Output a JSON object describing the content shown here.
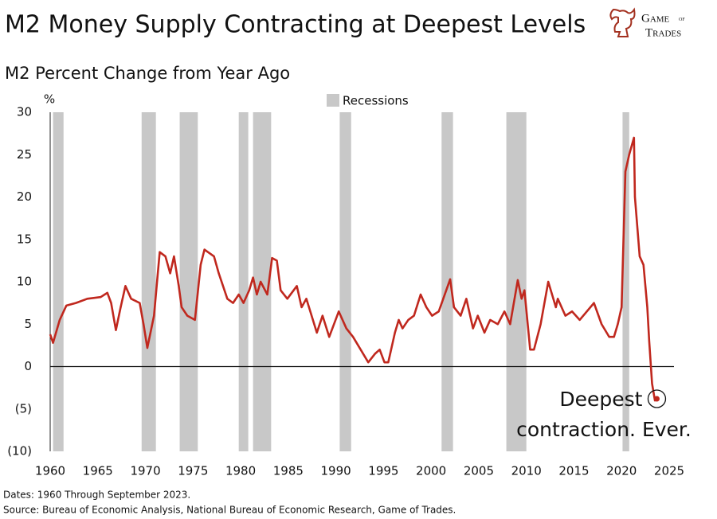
{
  "chart_data": {
    "type": "line",
    "title": "M2 Money Supply Contracting at Deepest Levels",
    "subtitle": "M2 Percent Change from Year Ago",
    "y_unit": "%",
    "x": [
      1960.0,
      1960.3,
      1961.0,
      1961.7,
      1962.7,
      1963.9,
      1965.3,
      1966.0,
      1966.4,
      1966.9,
      1967.4,
      1967.9,
      1968.5,
      1969.4,
      1969.8,
      1970.2,
      1970.9,
      1971.5,
      1972.1,
      1972.6,
      1973.0,
      1973.5,
      1973.8,
      1974.4,
      1975.2,
      1975.8,
      1976.2,
      1977.2,
      1977.7,
      1978.6,
      1979.2,
      1979.8,
      1980.3,
      1980.9,
      1981.3,
      1981.7,
      1982.1,
      1982.8,
      1983.3,
      1983.8,
      1984.2,
      1984.9,
      1985.9,
      1986.4,
      1986.9,
      1988.0,
      1988.6,
      1989.3,
      1990.3,
      1991.1,
      1991.8,
      1992.6,
      1993.4,
      1994.1,
      1994.6,
      1995.1,
      1995.5,
      1996.2,
      1996.6,
      1997.0,
      1997.6,
      1998.2,
      1998.9,
      1999.5,
      2000.1,
      2000.8,
      2002.0,
      2002.4,
      2003.1,
      2003.7,
      2004.4,
      2004.9,
      2005.6,
      2006.2,
      2007.0,
      2007.7,
      2008.3,
      2009.1,
      2009.5,
      2009.8,
      2010.4,
      2010.8,
      2011.5,
      2012.3,
      2013.1,
      2013.3,
      2014.1,
      2014.8,
      2015.6,
      2017.1,
      2017.9,
      2018.7,
      2019.2,
      2019.6,
      2020.0,
      2020.4,
      2020.8,
      2021.3,
      2021.4,
      2021.9,
      2022.3,
      2022.7,
      2022.9,
      2023.2,
      2023.5,
      2023.7
    ],
    "values": [
      3.8,
      2.8,
      5.5,
      7.2,
      7.5,
      8,
      8.2,
      8.7,
      7.5,
      4.3,
      7,
      9.5,
      8,
      7.5,
      5,
      2.2,
      6,
      13.5,
      13,
      11,
      13,
      9.5,
      7,
      6,
      5.5,
      12,
      13.8,
      13,
      11,
      8,
      7.5,
      8.5,
      7.5,
      9,
      10.5,
      8.5,
      10,
      8.5,
      12.8,
      12.5,
      9,
      8,
      9.5,
      7,
      8,
      4,
      6,
      3.5,
      6.5,
      4.5,
      3.5,
      2,
      0.5,
      1.5,
      2,
      0.5,
      0.5,
      4,
      5.5,
      4.5,
      5.5,
      6,
      8.5,
      7,
      6,
      6.5,
      10.3,
      7,
      6,
      8,
      4.5,
      6,
      4,
      5.5,
      5,
      6.5,
      5,
      10.2,
      8,
      9,
      2,
      2,
      5,
      10,
      7,
      8,
      6,
      6.5,
      5.5,
      7.5,
      5,
      3.5,
      3.5,
      5,
      7,
      23,
      25,
      27,
      20,
      13,
      12,
      7,
      3,
      -2,
      -4,
      -3.8
    ],
    "color": "#c0281e",
    "recessions": {
      "name": "Recessions",
      "color": "#c8c8c8",
      "periods": [
        [
          1960.3,
          1961.4
        ],
        [
          1969.6,
          1971.1
        ],
        [
          1973.6,
          1975.5
        ],
        [
          1979.8,
          1980.8
        ],
        [
          1981.3,
          1983.2
        ],
        [
          1990.4,
          1991.6
        ],
        [
          2001.1,
          2002.3
        ],
        [
          2007.9,
          2010.0
        ],
        [
          2020.1,
          2020.8
        ]
      ]
    },
    "annotation": [
      "Deepest",
      "contraction. Ever."
    ],
    "xlim": [
      1960,
      2025
    ],
    "xticks": [
      1960,
      1965,
      1970,
      1975,
      1980,
      1985,
      1990,
      1995,
      2000,
      2005,
      2010,
      2015,
      2020,
      2025
    ],
    "ylim": [
      -10,
      30
    ],
    "yticks": [
      30,
      25,
      20,
      15,
      10,
      5,
      0,
      {
        "value": -5,
        "label": "(5)"
      },
      {
        "value": -10,
        "label": "(10)"
      }
    ],
    "zero_line": true,
    "notes": [
      "Dates: 1960 Through September 2023.",
      "Source: Bureau of Economic Analysis, National Bureau of Economic Research, Game of Trades."
    ]
  },
  "logo": [
    "Game",
    "of",
    "Trades"
  ]
}
